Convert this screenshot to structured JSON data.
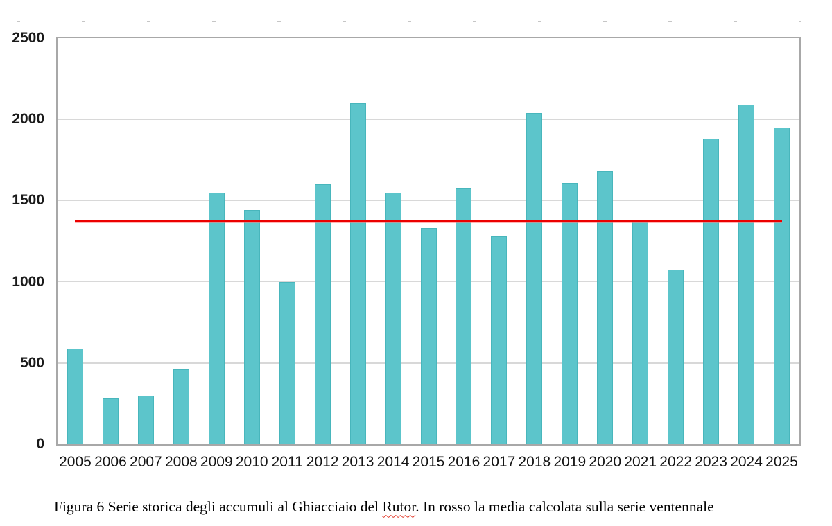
{
  "chart_data": {
    "type": "bar",
    "title": "",
    "xlabel": "",
    "ylabel": "",
    "categories": [
      "2005",
      "2006",
      "2007",
      "2008",
      "2009",
      "2010",
      "2011",
      "2012",
      "2013",
      "2014",
      "2015",
      "2016",
      "2017",
      "2018",
      "2019",
      "2020",
      "2021",
      "2022",
      "2023",
      "2024",
      "2025"
    ],
    "values": [
      590,
      280,
      300,
      460,
      1550,
      1440,
      1000,
      1600,
      2100,
      1550,
      1330,
      1580,
      1280,
      2040,
      1610,
      1680,
      1370,
      1075,
      1880,
      2090,
      1950
    ],
    "ylim": [
      0,
      2500
    ],
    "ytick_interval": 500,
    "ytick_labels": [
      "0",
      "500",
      "1000",
      "1500",
      "2000",
      "2500"
    ],
    "grid": true,
    "legend_position": "none",
    "mean_line": {
      "value": 1370,
      "label": "media ventennale"
    }
  },
  "caption": {
    "prefix": "Figura 6 Serie storica degli accumuli al Ghiacciaio del ",
    "misspelled_word": "Rutor",
    "suffix": ". In rosso la media calcolata sulla serie ventennale"
  },
  "colors": {
    "bar": "#5cc5cb",
    "bar_border": "#30a3ab",
    "mean_line": "#ec0000",
    "gridline": "#d8d8d8",
    "frame": "#a8a8a8",
    "axis_text": "#1a1a1a"
  }
}
